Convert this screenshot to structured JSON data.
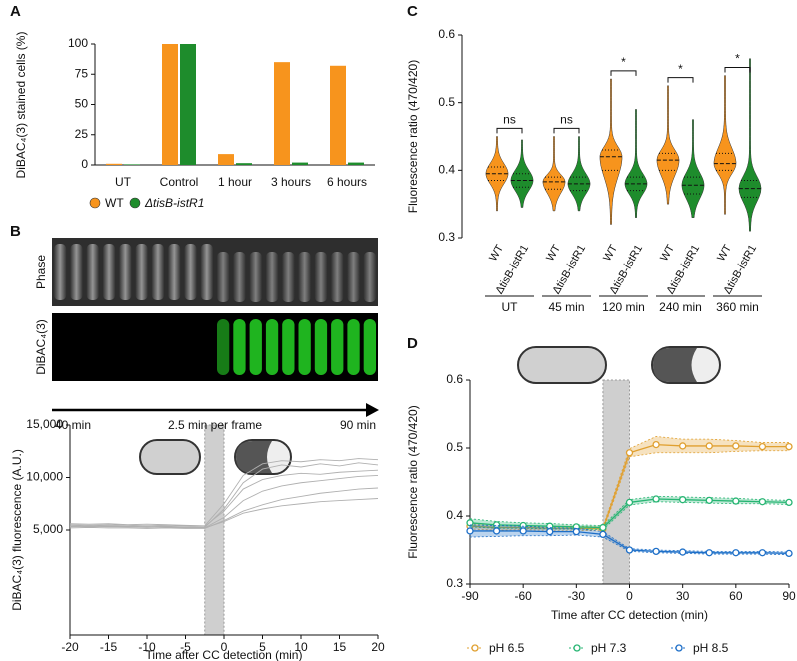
{
  "figure": {
    "panels": [
      "A",
      "B",
      "C",
      "D"
    ],
    "microscopy": {
      "rows": [
        "Phase",
        "DiBAC₄(3)"
      ],
      "start": "40 min",
      "step": "2.5 min per frame",
      "end": "90 min"
    }
  },
  "chart_data": [
    {
      "type": "bar",
      "ylabel": "DiBAC₄(3) stained cells (%)",
      "categories": [
        "UT",
        "Control",
        "1 hour",
        "3 hours",
        "6 hours"
      ],
      "series": [
        {
          "name": "WT",
          "color": "#f7941d",
          "values": [
            1,
            100,
            9,
            85,
            82
          ]
        },
        {
          "name": "ΔtisB-istR1",
          "color": "#1e8c2c",
          "values": [
            0.5,
            100,
            1.5,
            2,
            2
          ]
        }
      ],
      "ylim": [
        0,
        100
      ],
      "yticks": [
        0,
        25,
        50,
        75,
        100
      ]
    },
    {
      "type": "line",
      "xlabel": "Time after CC detection (min)",
      "ylabel": "DiBAC₄(3) fluorescence (A.U.)",
      "x": [
        -20,
        -17.5,
        -15,
        -12.5,
        -10,
        -7.5,
        -5,
        -2.5,
        0,
        2.5,
        5,
        7.5,
        10,
        12.5,
        15,
        17.5,
        20
      ],
      "series": [
        {
          "color": "#b0b0b0",
          "values": [
            5400,
            5450,
            5400,
            5350,
            5400,
            5350,
            5300,
            5250,
            7000,
            9500,
            10800,
            11200,
            11000,
            11300,
            11100,
            11400,
            11200
          ]
        },
        {
          "color": "#b0b0b0",
          "values": [
            5300,
            5350,
            5300,
            5300,
            5250,
            5300,
            5250,
            5200,
            6200,
            7800,
            8700,
            9200,
            9500,
            9700,
            9900,
            10100,
            10200
          ]
        },
        {
          "color": "#b0b0b0",
          "values": [
            5500,
            5450,
            5500,
            5450,
            5400,
            5450,
            5400,
            5350,
            6800,
            8900,
            9800,
            10200,
            10400,
            10300,
            10500,
            10600,
            10700
          ]
        },
        {
          "color": "#b0b0b0",
          "values": [
            5200,
            5250,
            5200,
            5200,
            5150,
            5200,
            5150,
            5150,
            5900,
            6800,
            7400,
            7900,
            8200,
            8500,
            8700,
            8900,
            9000
          ]
        },
        {
          "color": "#b0b0b0",
          "values": [
            5600,
            5550,
            5600,
            5500,
            5550,
            5500,
            5450,
            5400,
            7500,
            10200,
            11300,
            11600,
            11500,
            11700,
            11600,
            11800,
            11700
          ]
        },
        {
          "color": "#b0b0b0",
          "values": [
            5350,
            5300,
            5350,
            5300,
            5300,
            5250,
            5200,
            5200,
            5800,
            6600,
            7000,
            7300,
            7500,
            7700,
            7800,
            7900,
            8000
          ]
        }
      ],
      "shade_x": [
        -2.5,
        0
      ],
      "xlim": [
        -20,
        20
      ],
      "xticks": [
        -20,
        -15,
        -10,
        -5,
        0,
        5,
        10,
        15,
        20
      ],
      "ylim": [
        -5000,
        15000
      ],
      "yticks": [
        {
          "value": 5000,
          "label": "5,000"
        },
        {
          "value": 10000,
          "label": "10,000"
        },
        {
          "value": 15000,
          "label": "15,000"
        }
      ]
    },
    {
      "type": "violin",
      "ylabel": "Fluorescence ratio (470/420)",
      "categories": [
        "UT",
        "45 min",
        "120 min",
        "240 min",
        "360 min"
      ],
      "series": [
        {
          "name": "WT",
          "color": "#f7941d",
          "min": [
            0.34,
            0.34,
            0.32,
            0.35,
            0.335
          ],
          "q1": [
            0.385,
            0.372,
            0.4,
            0.4,
            0.4
          ],
          "median": [
            0.395,
            0.383,
            0.42,
            0.415,
            0.41
          ],
          "q3": [
            0.405,
            0.39,
            0.43,
            0.425,
            0.425
          ],
          "max": [
            0.45,
            0.45,
            0.535,
            0.525,
            0.54
          ]
        },
        {
          "name": "ΔtisB-istR1",
          "color": "#1e8c2c",
          "min": [
            0.345,
            0.34,
            0.33,
            0.33,
            0.31
          ],
          "q1": [
            0.375,
            0.37,
            0.37,
            0.365,
            0.36
          ],
          "median": [
            0.385,
            0.38,
            0.38,
            0.378,
            0.373
          ],
          "q3": [
            0.395,
            0.39,
            0.39,
            0.39,
            0.385
          ],
          "max": [
            0.445,
            0.45,
            0.49,
            0.475,
            0.565
          ]
        }
      ],
      "annotations": [
        "ns",
        "ns",
        "*",
        "*",
        "*"
      ],
      "ylim": [
        0.3,
        0.6
      ],
      "yticks": [
        0.3,
        0.4,
        0.5,
        0.6
      ]
    },
    {
      "type": "line",
      "xlabel": "Time after CC detection (min)",
      "ylabel": "Fluorescence ratio (470/420)",
      "x": [
        -90,
        -75,
        -60,
        -45,
        -30,
        -15,
        0,
        15,
        30,
        45,
        60,
        75,
        90
      ],
      "series": [
        {
          "name": "pH 6.5",
          "color": "#e0a030",
          "values": [
            0.385,
            0.383,
            0.383,
            0.382,
            0.382,
            0.381,
            0.493,
            0.505,
            0.503,
            0.503,
            0.503,
            0.502,
            0.502
          ],
          "errors": [
            0.004,
            0.004,
            0.003,
            0.003,
            0.003,
            0.003,
            0.006,
            0.012,
            0.01,
            0.01,
            0.008,
            0.006,
            0.006
          ]
        },
        {
          "name": "pH 7.3",
          "color": "#27b573",
          "values": [
            0.39,
            0.387,
            0.386,
            0.385,
            0.384,
            0.383,
            0.42,
            0.425,
            0.424,
            0.423,
            0.422,
            0.421,
            0.42
          ],
          "errors": [
            0.006,
            0.005,
            0.004,
            0.004,
            0.003,
            0.003,
            0.004,
            0.004,
            0.004,
            0.004,
            0.004,
            0.003,
            0.003
          ]
        },
        {
          "name": "pH 8.5",
          "color": "#1e6fc8",
          "values": [
            0.378,
            0.378,
            0.378,
            0.377,
            0.377,
            0.373,
            0.35,
            0.348,
            0.347,
            0.346,
            0.346,
            0.346,
            0.345
          ],
          "errors": [
            0.009,
            0.008,
            0.007,
            0.006,
            0.005,
            0.004,
            0.002,
            0.002,
            0.002,
            0.002,
            0.002,
            0.002,
            0.002
          ]
        }
      ],
      "shade_x": [
        -15,
        0
      ],
      "xlim": [
        -90,
        90
      ],
      "xticks": [
        -90,
        -60,
        -30,
        0,
        30,
        60,
        90
      ],
      "ylim": [
        0.3,
        0.6
      ],
      "yticks": [
        0.3,
        0.4,
        0.5,
        0.6
      ]
    }
  ]
}
